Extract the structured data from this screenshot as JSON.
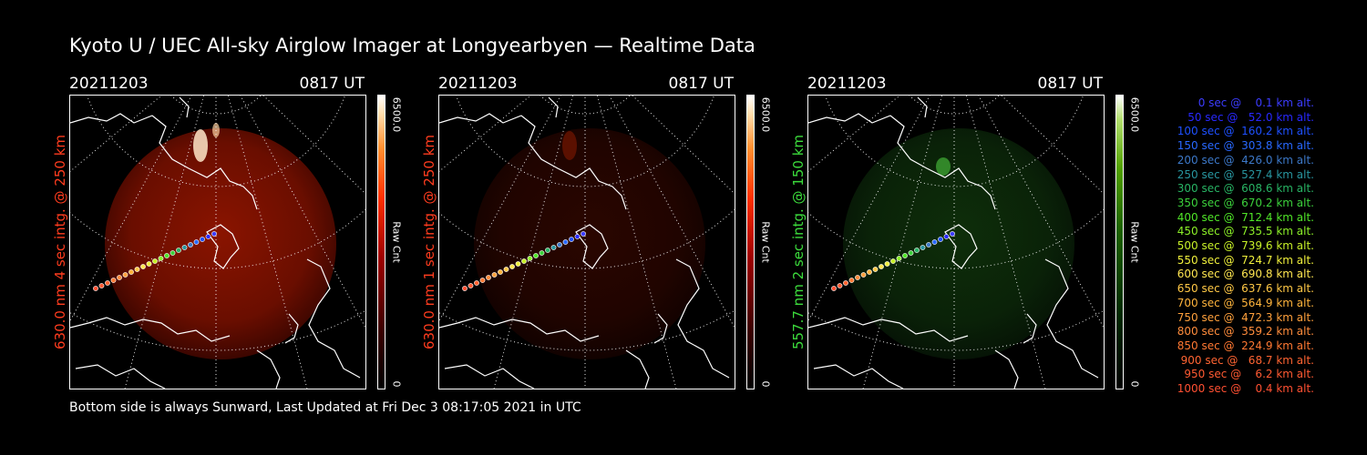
{
  "title": "Kyoto U / UEC All-sky Airglow Imager at Longyearbyen — Realtime Data",
  "footer": "Bottom side is always Sunward, Last Updated at Fri Dec  3 08:17:05 2021 in UTC",
  "colorbar": {
    "max_label": "6500.0",
    "unit_label": "Raw Cnt",
    "min_label": "0"
  },
  "panels": [
    {
      "date": "20211203",
      "time": "0817 UT",
      "label": "630.0 nm  4 sec intg. @ 250 km",
      "label_color": "#ff3c1e",
      "theme": "red-bright"
    },
    {
      "date": "20211203",
      "time": "0817 UT",
      "label": "630.0 nm  1 sec intg. @ 250 km",
      "label_color": "#ff3c1e",
      "theme": "red-dim"
    },
    {
      "date": "20211203",
      "time": "0817 UT",
      "label": "557.7 nm  2 sec intg. @ 150 km",
      "label_color": "#3cdc3c",
      "theme": "green"
    }
  ],
  "trajectory_legend": [
    {
      "text": "0 sec @    0.1 km alt.",
      "color": "#3c3cff"
    },
    {
      "text": "50 sec @   52.0 km alt.",
      "color": "#2828ff"
    },
    {
      "text": "100 sec @  160.2 km alt.",
      "color": "#1e50ff"
    },
    {
      "text": "150 sec @  303.8 km alt.",
      "color": "#2868ff"
    },
    {
      "text": "200 sec @  426.0 km alt.",
      "color": "#3c78c8"
    },
    {
      "text": "250 sec @  527.4 km alt.",
      "color": "#2896a0"
    },
    {
      "text": "300 sec @  608.6 km alt.",
      "color": "#28b464"
    },
    {
      "text": "350 sec @  670.2 km alt.",
      "color": "#3cd23c"
    },
    {
      "text": "400 sec @  712.4 km alt.",
      "color": "#50e628"
    },
    {
      "text": "450 sec @  735.5 km alt.",
      "color": "#8cf028"
    },
    {
      "text": "500 sec @  739.6 km alt.",
      "color": "#c8f028"
    },
    {
      "text": "550 sec @  724.7 km alt.",
      "color": "#f0f03c"
    },
    {
      "text": "600 sec @  690.8 km alt.",
      "color": "#ffe650"
    },
    {
      "text": "650 sec @  637.6 km alt.",
      "color": "#ffc846"
    },
    {
      "text": "700 sec @  564.9 km alt.",
      "color": "#ffb43c"
    },
    {
      "text": "750 sec @  472.3 km alt.",
      "color": "#ffa03c"
    },
    {
      "text": "800 sec @  359.2 km alt.",
      "color": "#ff8c3c"
    },
    {
      "text": "850 sec @  224.9 km alt.",
      "color": "#ff7832"
    },
    {
      "text": "900 sec @   68.7 km alt.",
      "color": "#ff6432"
    },
    {
      "text": "950 sec @    6.2 km alt.",
      "color": "#ff5a32"
    },
    {
      "text": "1000 sec @    0.4 km alt.",
      "color": "#ff5032"
    }
  ]
}
